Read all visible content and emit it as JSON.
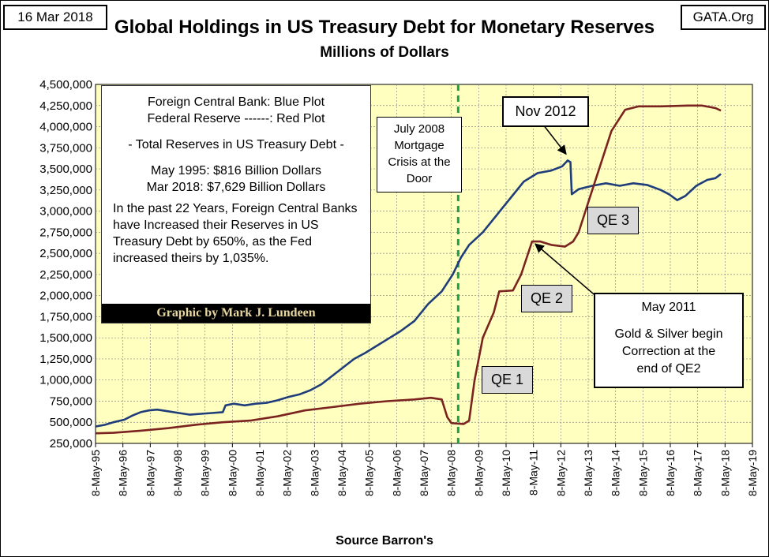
{
  "header": {
    "date": "16 Mar 2018",
    "source_site": "GATA.Org"
  },
  "chart_data": {
    "type": "line",
    "title": "Global Holdings in US Treasury Debt for Monetary Reserves",
    "subtitle": "Millions of Dollars",
    "xlabel": "Source Barron's",
    "ylabel": "",
    "ylim": [
      250000,
      4500000
    ],
    "xlim": [
      1995.35,
      2019.35
    ],
    "grid": true,
    "y_ticks": [
      "250,000",
      "500,000",
      "750,000",
      "1,000,000",
      "1,250,000",
      "1,500,000",
      "1,750,000",
      "2,000,000",
      "2,250,000",
      "2,500,000",
      "2,750,000",
      "3,000,000",
      "3,250,000",
      "3,500,000",
      "3,750,000",
      "4,000,000",
      "4,250,000",
      "4,500,000"
    ],
    "x_ticks": [
      "8-May-95",
      "8-May-96",
      "8-May-97",
      "8-May-98",
      "8-May-99",
      "8-May-00",
      "8-May-01",
      "8-May-02",
      "8-May-03",
      "8-May-04",
      "8-May-05",
      "8-May-06",
      "8-May-07",
      "8-May-08",
      "8-May-09",
      "8-May-10",
      "8-May-11",
      "8-May-12",
      "8-May-13",
      "8-May-14",
      "8-May-15",
      "8-May-16",
      "8-May-17",
      "8-May-18",
      "8-May-19"
    ],
    "colors": {
      "plot_bg": "#ffffc0",
      "foreign": "#1f3d7a",
      "fed": "#7b2320",
      "marker": "#1ea04a"
    },
    "marker_line_x": 2008.6,
    "series": [
      {
        "name": "Foreign Central Bank",
        "points": [
          [
            1995.35,
            450000
          ],
          [
            1995.7,
            470000
          ],
          [
            1996.0,
            500000
          ],
          [
            1996.4,
            530000
          ],
          [
            1996.7,
            580000
          ],
          [
            1997.0,
            620000
          ],
          [
            1997.3,
            640000
          ],
          [
            1997.6,
            650000
          ],
          [
            1998.0,
            630000
          ],
          [
            1998.4,
            610000
          ],
          [
            1998.8,
            590000
          ],
          [
            1999.2,
            600000
          ],
          [
            1999.6,
            610000
          ],
          [
            2000.0,
            620000
          ],
          [
            2000.1,
            700000
          ],
          [
            2000.4,
            720000
          ],
          [
            2000.8,
            700000
          ],
          [
            2001.2,
            720000
          ],
          [
            2001.6,
            730000
          ],
          [
            2002.0,
            760000
          ],
          [
            2002.4,
            800000
          ],
          [
            2002.8,
            830000
          ],
          [
            2003.2,
            880000
          ],
          [
            2003.6,
            950000
          ],
          [
            2004.0,
            1050000
          ],
          [
            2004.4,
            1150000
          ],
          [
            2004.8,
            1250000
          ],
          [
            2005.2,
            1320000
          ],
          [
            2005.6,
            1400000
          ],
          [
            2006.0,
            1480000
          ],
          [
            2006.5,
            1580000
          ],
          [
            2007.0,
            1700000
          ],
          [
            2007.5,
            1900000
          ],
          [
            2008.0,
            2050000
          ],
          [
            2008.4,
            2250000
          ],
          [
            2008.7,
            2450000
          ],
          [
            2009.0,
            2600000
          ],
          [
            2009.5,
            2750000
          ],
          [
            2010.0,
            2950000
          ],
          [
            2010.5,
            3150000
          ],
          [
            2011.0,
            3350000
          ],
          [
            2011.5,
            3450000
          ],
          [
            2012.0,
            3480000
          ],
          [
            2012.4,
            3530000
          ],
          [
            2012.6,
            3600000
          ],
          [
            2012.7,
            3580000
          ],
          [
            2012.75,
            3200000
          ],
          [
            2013.0,
            3260000
          ],
          [
            2013.5,
            3300000
          ],
          [
            2014.0,
            3330000
          ],
          [
            2014.5,
            3300000
          ],
          [
            2015.0,
            3330000
          ],
          [
            2015.5,
            3310000
          ],
          [
            2016.0,
            3250000
          ],
          [
            2016.3,
            3200000
          ],
          [
            2016.6,
            3130000
          ],
          [
            2016.9,
            3180000
          ],
          [
            2017.3,
            3300000
          ],
          [
            2017.7,
            3370000
          ],
          [
            2018.0,
            3390000
          ],
          [
            2018.2,
            3440000
          ]
        ]
      },
      {
        "name": "Federal Reserve",
        "points": [
          [
            1995.35,
            370000
          ],
          [
            1996.0,
            375000
          ],
          [
            1997.0,
            400000
          ],
          [
            1998.0,
            430000
          ],
          [
            1999.0,
            470000
          ],
          [
            2000.0,
            500000
          ],
          [
            2001.0,
            520000
          ],
          [
            2002.0,
            570000
          ],
          [
            2003.0,
            640000
          ],
          [
            2004.0,
            680000
          ],
          [
            2005.0,
            720000
          ],
          [
            2006.0,
            750000
          ],
          [
            2007.0,
            770000
          ],
          [
            2007.6,
            790000
          ],
          [
            2008.0,
            770000
          ],
          [
            2008.2,
            560000
          ],
          [
            2008.35,
            490000
          ],
          [
            2008.8,
            480000
          ],
          [
            2009.0,
            520000
          ],
          [
            2009.2,
            1000000
          ],
          [
            2009.5,
            1500000
          ],
          [
            2009.9,
            1800000
          ],
          [
            2010.1,
            2050000
          ],
          [
            2010.6,
            2060000
          ],
          [
            2010.9,
            2250000
          ],
          [
            2011.3,
            2640000
          ],
          [
            2011.6,
            2640000
          ],
          [
            2012.0,
            2600000
          ],
          [
            2012.5,
            2580000
          ],
          [
            2012.8,
            2640000
          ],
          [
            2013.0,
            2750000
          ],
          [
            2013.4,
            3150000
          ],
          [
            2013.8,
            3550000
          ],
          [
            2014.2,
            3950000
          ],
          [
            2014.7,
            4200000
          ],
          [
            2015.2,
            4240000
          ],
          [
            2016.0,
            4240000
          ],
          [
            2017.0,
            4250000
          ],
          [
            2017.5,
            4250000
          ],
          [
            2018.0,
            4220000
          ],
          [
            2018.2,
            4190000
          ]
        ]
      }
    ],
    "annotations": {
      "info_lines": [
        "Foreign Central Bank: Blue Plot",
        "Federal Reserve ------: Red Plot",
        "- Total Reserves in US Treasury Debt -",
        "May 1995:   $816 Billion Dollars",
        "Mar 2018: $7,629 Billion Dollars"
      ],
      "info_paragraph": "In the past 22 Years, Foreign Central Banks have Increased their Reserves in US Treasury Debt by 650%, as the Fed increased theirs by 1,035%.",
      "credit": "Graphic by Mark J. Lundeen",
      "crisis": [
        "July 2008",
        "Mortgage",
        "Crisis at the",
        "Door"
      ],
      "nov2012": "Nov 2012",
      "may2011": [
        "May 2011",
        "Gold & Silver  begin",
        "Correction at the",
        "end of QE2"
      ],
      "qe1": "QE 1",
      "qe2": "QE 2",
      "qe3": "QE 3"
    }
  }
}
